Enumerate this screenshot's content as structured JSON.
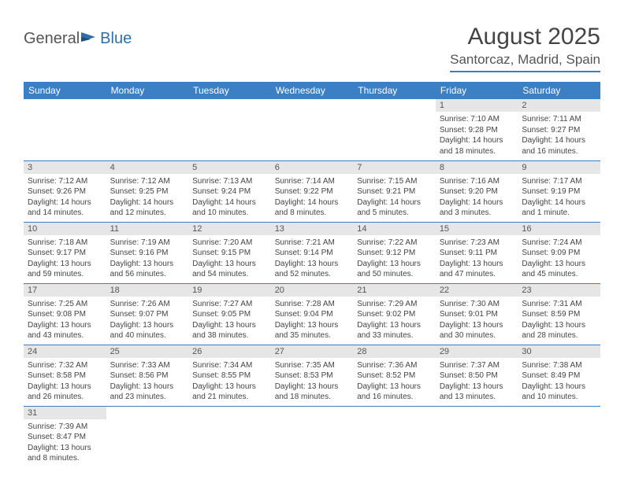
{
  "logo": {
    "part1": "General",
    "part2": "Blue"
  },
  "title": "August 2025",
  "location": "Santorcaz, Madrid, Spain",
  "colors": {
    "header_bg": "#3b7fc4",
    "header_fg": "#ffffff",
    "daynum_bg": "#e6e6e6",
    "border": "#3b7fc4",
    "text": "#444444"
  },
  "weekdays": [
    "Sunday",
    "Monday",
    "Tuesday",
    "Wednesday",
    "Thursday",
    "Friday",
    "Saturday"
  ],
  "weeks": [
    [
      null,
      null,
      null,
      null,
      null,
      {
        "n": "1",
        "sr": "Sunrise: 7:10 AM",
        "ss": "Sunset: 9:28 PM",
        "dl": "Daylight: 14 hours and 18 minutes."
      },
      {
        "n": "2",
        "sr": "Sunrise: 7:11 AM",
        "ss": "Sunset: 9:27 PM",
        "dl": "Daylight: 14 hours and 16 minutes."
      }
    ],
    [
      {
        "n": "3",
        "sr": "Sunrise: 7:12 AM",
        "ss": "Sunset: 9:26 PM",
        "dl": "Daylight: 14 hours and 14 minutes."
      },
      {
        "n": "4",
        "sr": "Sunrise: 7:12 AM",
        "ss": "Sunset: 9:25 PM",
        "dl": "Daylight: 14 hours and 12 minutes."
      },
      {
        "n": "5",
        "sr": "Sunrise: 7:13 AM",
        "ss": "Sunset: 9:24 PM",
        "dl": "Daylight: 14 hours and 10 minutes."
      },
      {
        "n": "6",
        "sr": "Sunrise: 7:14 AM",
        "ss": "Sunset: 9:22 PM",
        "dl": "Daylight: 14 hours and 8 minutes."
      },
      {
        "n": "7",
        "sr": "Sunrise: 7:15 AM",
        "ss": "Sunset: 9:21 PM",
        "dl": "Daylight: 14 hours and 5 minutes."
      },
      {
        "n": "8",
        "sr": "Sunrise: 7:16 AM",
        "ss": "Sunset: 9:20 PM",
        "dl": "Daylight: 14 hours and 3 minutes."
      },
      {
        "n": "9",
        "sr": "Sunrise: 7:17 AM",
        "ss": "Sunset: 9:19 PM",
        "dl": "Daylight: 14 hours and 1 minute."
      }
    ],
    [
      {
        "n": "10",
        "sr": "Sunrise: 7:18 AM",
        "ss": "Sunset: 9:17 PM",
        "dl": "Daylight: 13 hours and 59 minutes."
      },
      {
        "n": "11",
        "sr": "Sunrise: 7:19 AM",
        "ss": "Sunset: 9:16 PM",
        "dl": "Daylight: 13 hours and 56 minutes."
      },
      {
        "n": "12",
        "sr": "Sunrise: 7:20 AM",
        "ss": "Sunset: 9:15 PM",
        "dl": "Daylight: 13 hours and 54 minutes."
      },
      {
        "n": "13",
        "sr": "Sunrise: 7:21 AM",
        "ss": "Sunset: 9:14 PM",
        "dl": "Daylight: 13 hours and 52 minutes."
      },
      {
        "n": "14",
        "sr": "Sunrise: 7:22 AM",
        "ss": "Sunset: 9:12 PM",
        "dl": "Daylight: 13 hours and 50 minutes."
      },
      {
        "n": "15",
        "sr": "Sunrise: 7:23 AM",
        "ss": "Sunset: 9:11 PM",
        "dl": "Daylight: 13 hours and 47 minutes."
      },
      {
        "n": "16",
        "sr": "Sunrise: 7:24 AM",
        "ss": "Sunset: 9:09 PM",
        "dl": "Daylight: 13 hours and 45 minutes."
      }
    ],
    [
      {
        "n": "17",
        "sr": "Sunrise: 7:25 AM",
        "ss": "Sunset: 9:08 PM",
        "dl": "Daylight: 13 hours and 43 minutes."
      },
      {
        "n": "18",
        "sr": "Sunrise: 7:26 AM",
        "ss": "Sunset: 9:07 PM",
        "dl": "Daylight: 13 hours and 40 minutes."
      },
      {
        "n": "19",
        "sr": "Sunrise: 7:27 AM",
        "ss": "Sunset: 9:05 PM",
        "dl": "Daylight: 13 hours and 38 minutes."
      },
      {
        "n": "20",
        "sr": "Sunrise: 7:28 AM",
        "ss": "Sunset: 9:04 PM",
        "dl": "Daylight: 13 hours and 35 minutes."
      },
      {
        "n": "21",
        "sr": "Sunrise: 7:29 AM",
        "ss": "Sunset: 9:02 PM",
        "dl": "Daylight: 13 hours and 33 minutes."
      },
      {
        "n": "22",
        "sr": "Sunrise: 7:30 AM",
        "ss": "Sunset: 9:01 PM",
        "dl": "Daylight: 13 hours and 30 minutes."
      },
      {
        "n": "23",
        "sr": "Sunrise: 7:31 AM",
        "ss": "Sunset: 8:59 PM",
        "dl": "Daylight: 13 hours and 28 minutes."
      }
    ],
    [
      {
        "n": "24",
        "sr": "Sunrise: 7:32 AM",
        "ss": "Sunset: 8:58 PM",
        "dl": "Daylight: 13 hours and 26 minutes."
      },
      {
        "n": "25",
        "sr": "Sunrise: 7:33 AM",
        "ss": "Sunset: 8:56 PM",
        "dl": "Daylight: 13 hours and 23 minutes."
      },
      {
        "n": "26",
        "sr": "Sunrise: 7:34 AM",
        "ss": "Sunset: 8:55 PM",
        "dl": "Daylight: 13 hours and 21 minutes."
      },
      {
        "n": "27",
        "sr": "Sunrise: 7:35 AM",
        "ss": "Sunset: 8:53 PM",
        "dl": "Daylight: 13 hours and 18 minutes."
      },
      {
        "n": "28",
        "sr": "Sunrise: 7:36 AM",
        "ss": "Sunset: 8:52 PM",
        "dl": "Daylight: 13 hours and 16 minutes."
      },
      {
        "n": "29",
        "sr": "Sunrise: 7:37 AM",
        "ss": "Sunset: 8:50 PM",
        "dl": "Daylight: 13 hours and 13 minutes."
      },
      {
        "n": "30",
        "sr": "Sunrise: 7:38 AM",
        "ss": "Sunset: 8:49 PM",
        "dl": "Daylight: 13 hours and 10 minutes."
      }
    ],
    [
      {
        "n": "31",
        "sr": "Sunrise: 7:39 AM",
        "ss": "Sunset: 8:47 PM",
        "dl": "Daylight: 13 hours and 8 minutes."
      },
      null,
      null,
      null,
      null,
      null,
      null
    ]
  ]
}
